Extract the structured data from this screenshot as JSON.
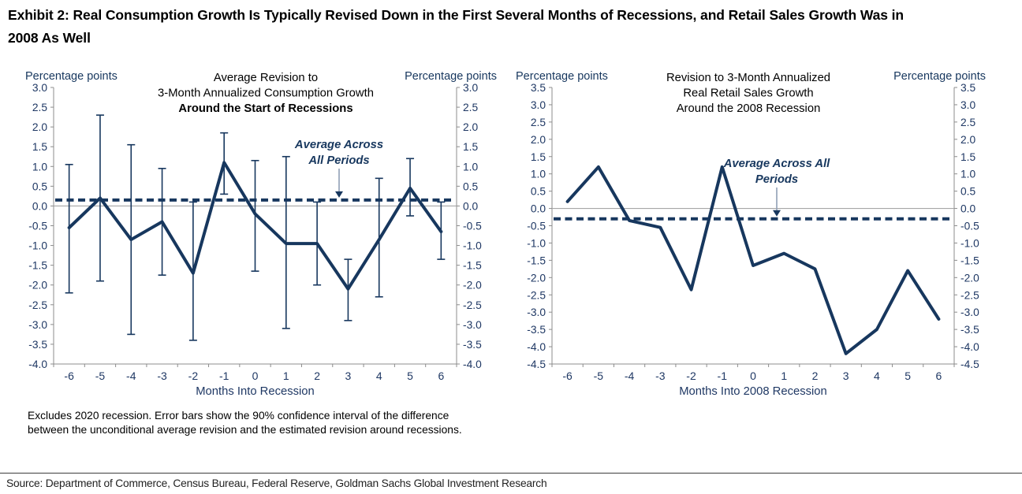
{
  "exhibit_title_lines": [
    "Exhibit 2: Real Consumption Growth Is Typically Revised Down in the First Several Months of Recessions, and Retail Sales Growth Was in",
    "2008 As Well"
  ],
  "footnote": "Excludes 2020 recession. Error bars show the 90% confidence interval of the difference between the unconditional average revision and the estimated revision around recessions.",
  "source": "Source: Department of Commerce, Census Bureau, Federal Reserve, Goldman Sachs Global Investment Research",
  "colors": {
    "line": "#17375E",
    "tick_label": "#1F3864",
    "axis": "#8C8C8C",
    "zero_line": "#A6A6A6",
    "arrow_shaft": "#8F9FB6",
    "title_text": "#000000"
  },
  "chart_data": [
    {
      "type": "line",
      "title_lines": [
        "Average Revision to",
        "3-Month Annualized Consumption Growth",
        "Around the Start of Recessions"
      ],
      "title_bold_index": 2,
      "y_axis_label_left": "Percentage points",
      "y_axis_label_right": "Percentage points",
      "xlabel": "Months Into Recession",
      "categories": [
        -6,
        -5,
        -4,
        -3,
        -2,
        -1,
        0,
        1,
        2,
        3,
        4,
        5,
        6
      ],
      "values": [
        -0.55,
        0.2,
        -0.85,
        -0.4,
        -1.7,
        1.1,
        -0.2,
        -0.95,
        -0.95,
        -2.1,
        -0.85,
        0.45,
        -0.65
      ],
      "error_hi": [
        1.05,
        2.3,
        1.55,
        0.95,
        0.1,
        1.85,
        1.15,
        1.25,
        0.1,
        -1.35,
        0.7,
        1.2,
        0.1
      ],
      "error_lo": [
        -2.2,
        -1.9,
        -3.25,
        -1.75,
        -3.4,
        0.3,
        -1.65,
        -3.1,
        -2.0,
        -2.9,
        -2.3,
        -0.25,
        -1.35
      ],
      "average_line": 0.15,
      "annotation_lines": [
        "Average Across",
        "All Periods"
      ],
      "ylim": [
        -4.0,
        3.0
      ],
      "ytick_step": 0.5,
      "legend": "none",
      "grid": "zero-line-only"
    },
    {
      "type": "line",
      "title_lines": [
        "Revision to 3-Month Annualized",
        "Real Retail Sales Growth",
        "Around the 2008 Recession"
      ],
      "title_bold_index": -1,
      "y_axis_label_left": "Percentage points",
      "y_axis_label_right": "Percentage points",
      "xlabel": "Months Into 2008 Recession",
      "categories": [
        -6,
        -5,
        -4,
        -3,
        -2,
        -1,
        0,
        1,
        2,
        3,
        4,
        5,
        6
      ],
      "values": [
        0.2,
        1.2,
        -0.35,
        -0.55,
        -2.35,
        1.2,
        -1.65,
        -1.3,
        -1.75,
        -4.2,
        -3.5,
        -1.8,
        -3.2
      ],
      "error_hi": null,
      "error_lo": null,
      "average_line": -0.3,
      "annotation_lines": [
        "Average Across All",
        "Periods"
      ],
      "ylim": [
        -4.5,
        3.5
      ],
      "ytick_step": 0.5,
      "legend": "none",
      "grid": "zero-line-only"
    }
  ]
}
